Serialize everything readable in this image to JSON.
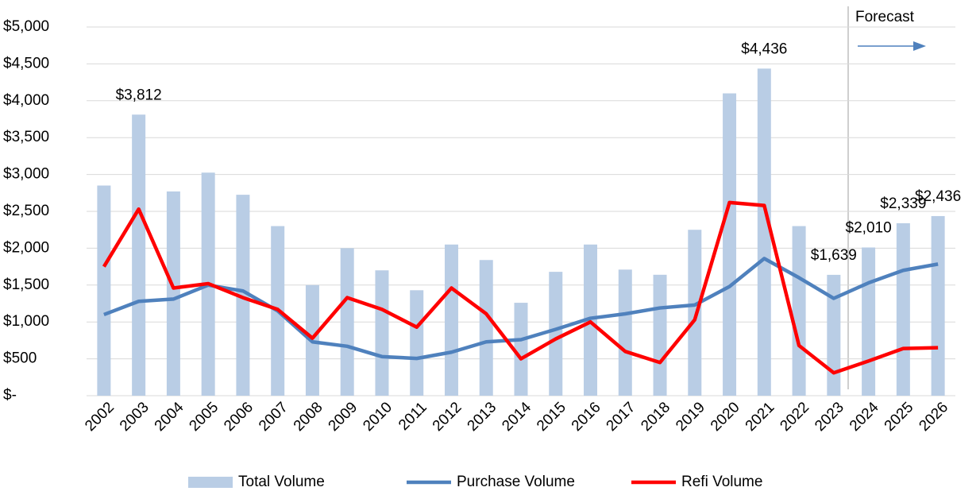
{
  "chart_data": {
    "type": "bar",
    "annotation": "Forecast",
    "categories": [
      "2002",
      "2003",
      "2004",
      "2005",
      "2006",
      "2007",
      "2008",
      "2009",
      "2010",
      "2011",
      "2012",
      "2013",
      "2014",
      "2015",
      "2016",
      "2017",
      "2018",
      "2019",
      "2020",
      "2021",
      "2022",
      "2023",
      "2024",
      "2025",
      "2026"
    ],
    "series": [
      {
        "name": "Total Volume",
        "type": "bar",
        "color": "#b9cde5",
        "values": [
          2850,
          3812,
          2770,
          3025,
          2725,
          2300,
          1500,
          2000,
          1700,
          1430,
          2050,
          1840,
          1260,
          1680,
          2050,
          1710,
          1640,
          2250,
          4100,
          4436,
          2300,
          1639,
          2010,
          2339,
          2436
        ],
        "value_labels": [
          null,
          "$3,812",
          null,
          null,
          null,
          null,
          null,
          null,
          null,
          null,
          null,
          null,
          null,
          null,
          null,
          null,
          null,
          null,
          null,
          "$4,436",
          null,
          "$1,639",
          "$2,010",
          "$2,339",
          "$2,436"
        ]
      },
      {
        "name": "Purchase Volume",
        "type": "line",
        "color": "#4f81bd",
        "values": [
          1100,
          1280,
          1310,
          1500,
          1420,
          1150,
          730,
          670,
          530,
          505,
          590,
          730,
          760,
          900,
          1050,
          1110,
          1190,
          1230,
          1480,
          1860,
          1600,
          1320,
          1530,
          1700,
          1785
        ]
      },
      {
        "name": "Refi Volume",
        "type": "line",
        "color": "#ff0000",
        "values": [
          1750,
          2530,
          1460,
          1520,
          1330,
          1170,
          780,
          1330,
          1170,
          930,
          1460,
          1110,
          500,
          770,
          1000,
          600,
          450,
          1030,
          2620,
          2580,
          680,
          310,
          470,
          640,
          650
        ]
      }
    ],
    "ylim": [
      0,
      5000
    ],
    "yticks": [
      {
        "value": 0,
        "label": "$-"
      },
      {
        "value": 500,
        "label": "$500"
      },
      {
        "value": 1000,
        "label": "$1,000"
      },
      {
        "value": 1500,
        "label": "$1,500"
      },
      {
        "value": 2000,
        "label": "$2,000"
      },
      {
        "value": 2500,
        "label": "$2,500"
      },
      {
        "value": 3000,
        "label": "$3,000"
      },
      {
        "value": 3500,
        "label": "$3,500"
      },
      {
        "value": 4000,
        "label": "$4,000"
      },
      {
        "value": 4500,
        "label": "$4,500"
      },
      {
        "value": 5000,
        "label": "$5,000"
      }
    ],
    "grid": true
  }
}
